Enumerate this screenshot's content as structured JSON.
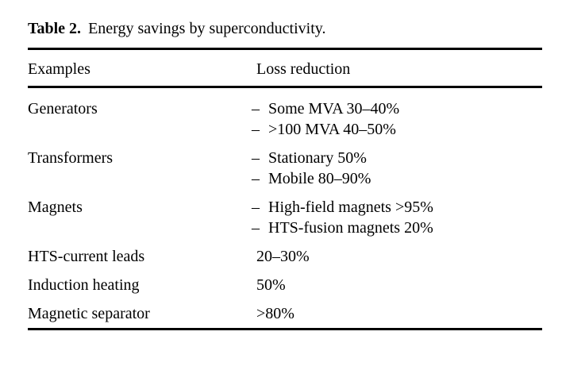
{
  "page": {
    "background": "#ffffff",
    "text_color": "#000000",
    "rule_color": "#000000"
  },
  "caption": {
    "label": "Table 2.",
    "text": "Energy savings by superconductivity."
  },
  "table": {
    "columns": [
      "Examples",
      "Loss reduction"
    ],
    "dash": "–",
    "rows": [
      {
        "example": "Generators",
        "items": [
          "Some MVA 30–40%",
          ">100 MVA 40–50%"
        ]
      },
      {
        "example": "Transformers",
        "items": [
          "Stationary 50%",
          "Mobile 80–90%"
        ]
      },
      {
        "example": "Magnets",
        "items": [
          "High-field magnets >95%",
          "HTS-fusion magnets 20%"
        ]
      },
      {
        "example": "HTS-current leads",
        "value": "20–30%"
      },
      {
        "example": "Induction heating",
        "value": "50%"
      },
      {
        "example": "Magnetic separator",
        "value": ">80%"
      }
    ]
  }
}
